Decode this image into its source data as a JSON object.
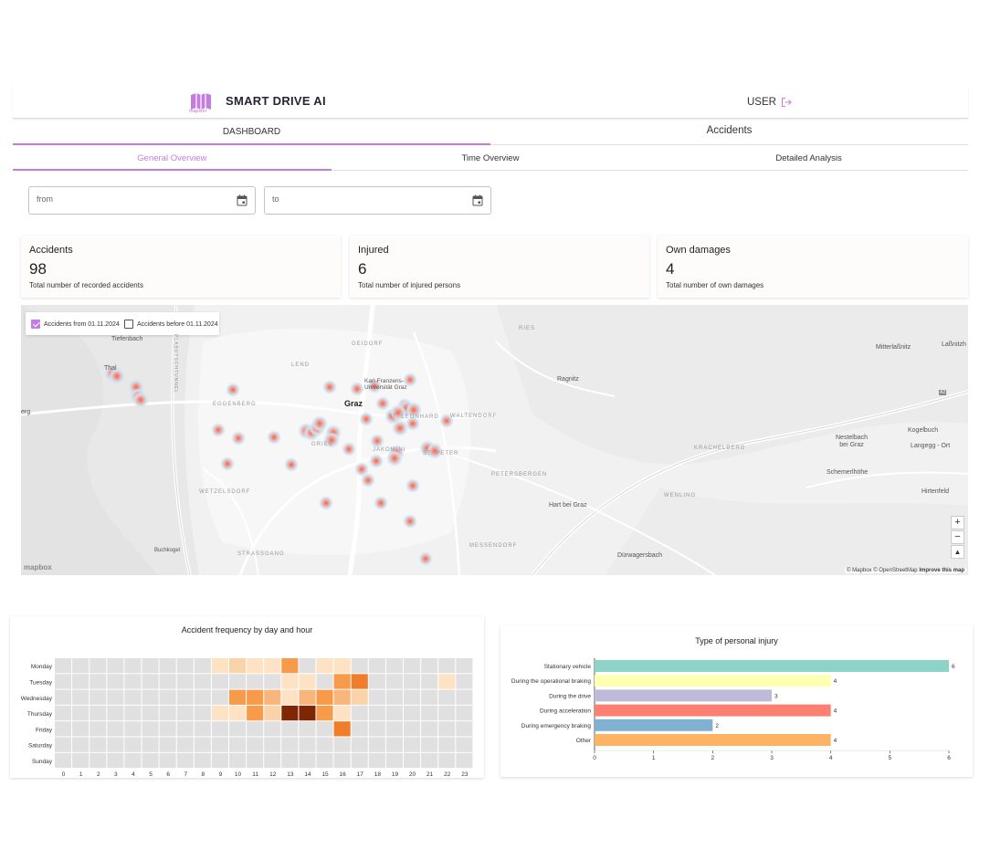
{
  "header": {
    "logo_text": "mapster",
    "brand": "SMART DRIVE AI",
    "user": "USER",
    "accent_color": "#c47ddc"
  },
  "main_tabs": [
    {
      "label": "DASHBOARD",
      "active": true
    },
    {
      "label": "Accidents",
      "active": false
    }
  ],
  "sub_tabs": [
    {
      "label": "General Overview",
      "active": true
    },
    {
      "label": "Time Overview",
      "active": false
    },
    {
      "label": "Detailed Analysis",
      "active": false
    }
  ],
  "filters": {
    "from_placeholder": "from",
    "to_placeholder": "to"
  },
  "kpis": [
    {
      "title": "Accidents",
      "value": "98",
      "desc": "Total number of recorded accidents"
    },
    {
      "title": "Injured",
      "value": "6",
      "desc": "Total number of injured persons"
    },
    {
      "title": "Own damages",
      "value": "4",
      "desc": "Total number of own damages"
    }
  ],
  "map": {
    "legend": [
      {
        "label": "Accidents from 01.11.2024",
        "checked": true
      },
      {
        "label": "Accidents before 01.11.2024",
        "checked": false
      }
    ],
    "labels": {
      "tiefenbach": "Tiefenbach",
      "thal": "Thal",
      "graz": "Graz",
      "lend": "LEND",
      "geidorf": "GEIDORF",
      "ries": "RIES",
      "ragnitz": "Ragnitz",
      "eggenberg": "EGGENBERG",
      "gries": "GRIES",
      "jakomini": "JAKOMINI",
      "st_peter": "ST. PETER",
      "st_leonhard": "ST. LEONHARD",
      "waltendorf": "WALTENDORF",
      "petersbergen": "PETERSBERGEN",
      "wetzelsdorf": "WETZELSDORF",
      "strassgang": "STRASSGANG",
      "messendorf": "MESSENDORF",
      "hart_bei_graz": "Hart bei Graz",
      "buchkogel": "Buchkogel",
      "durwagersbach": "Dürwagersbach",
      "mitterlassnitz": "Mitterlaßnitz",
      "lassnitzh": "Laßnitzh",
      "kogelbuch": "Kogelbuch",
      "nestelbach": "Nestelbach\nbei Graz",
      "langegg": "Langegg - Ort",
      "schemerlhohe": "Schemerlhöhe",
      "hirtenfeld": "Hirtenfeld",
      "krachelberg": "KRACHELBERG",
      "weinling": "WENLING",
      "uni": "Karl-Franzens-\nUniversität Graz",
      "erg": "erg",
      "plabutsch": "PLABUTSCHTUNNEL",
      "a2": "A2"
    },
    "zoom_in": "+",
    "zoom_out": "−",
    "compass": "▲",
    "mapbox": "mapbox",
    "attribution_prefix": "© Mapbox © OpenStreetMap ",
    "attribution_link": "Improve this map"
  },
  "heatmap": {
    "title": "Accident frequency by day and hour",
    "days": [
      "Monday",
      "Tuesday",
      "Wednesday",
      "Thursday",
      "Friday",
      "Saturday",
      "Sunday"
    ],
    "hours": [
      "0",
      "1",
      "2",
      "3",
      "4",
      "5",
      "6",
      "7",
      "8",
      "9",
      "10",
      "11",
      "12",
      "13",
      "14",
      "15",
      "16",
      "17",
      "18",
      "19",
      "20",
      "21",
      "22",
      "23"
    ],
    "values": [
      [
        0,
        0,
        0,
        0,
        0,
        0,
        0,
        0,
        0,
        1,
        2,
        1,
        1,
        4,
        0,
        1,
        1,
        0,
        0,
        0,
        0,
        0,
        0,
        0
      ],
      [
        0,
        0,
        0,
        0,
        0,
        0,
        0,
        0,
        0,
        0,
        0,
        0,
        0,
        1,
        1,
        0,
        4,
        5,
        0,
        0,
        0,
        0,
        1,
        0
      ],
      [
        0,
        0,
        0,
        0,
        0,
        0,
        0,
        0,
        0,
        0,
        4,
        4,
        3,
        1,
        3,
        4,
        3,
        2,
        0,
        0,
        0,
        0,
        0,
        0
      ],
      [
        0,
        0,
        0,
        0,
        0,
        0,
        0,
        0,
        0,
        1,
        1,
        4,
        2,
        8,
        8,
        4,
        1,
        0,
        0,
        0,
        0,
        0,
        0,
        0
      ],
      [
        0,
        0,
        0,
        0,
        0,
        0,
        0,
        0,
        0,
        0,
        0,
        0,
        0,
        0,
        0,
        0,
        5,
        0,
        0,
        0,
        0,
        0,
        0,
        0
      ],
      [
        0,
        0,
        0,
        0,
        0,
        0,
        0,
        0,
        0,
        0,
        0,
        0,
        0,
        0,
        0,
        0,
        0,
        0,
        0,
        0,
        0,
        0,
        0,
        0
      ],
      [
        0,
        0,
        0,
        0,
        0,
        0,
        0,
        0,
        0,
        0,
        0,
        0,
        0,
        0,
        0,
        0,
        0,
        0,
        0,
        0,
        0,
        0,
        0,
        0
      ]
    ],
    "empty_color": "#e0e0e0",
    "scale_colors": [
      "#e0e0e0",
      "#fde3c4",
      "#fbd3a8",
      "#f9b67a",
      "#f79a4a",
      "#ef7d2a",
      "#d05e12",
      "#a63c05",
      "#7f2704"
    ]
  },
  "chart_data": {
    "type": "bar",
    "title": "Type of personal injury",
    "orientation": "horizontal",
    "categories": [
      "Stationary vehicle",
      "During the operational braking",
      "During the drive",
      "During acceleration",
      "During emergency braking",
      "Other"
    ],
    "values": [
      6,
      4,
      3,
      4,
      2,
      4
    ],
    "colors": [
      "#8dd3c7",
      "#ffffb3",
      "#bebada",
      "#fb8072",
      "#80b1d3",
      "#fdb462"
    ],
    "xlim": [
      0,
      6
    ],
    "xticks": [
      "0",
      "1",
      "2",
      "3",
      "4",
      "5",
      "6"
    ]
  }
}
